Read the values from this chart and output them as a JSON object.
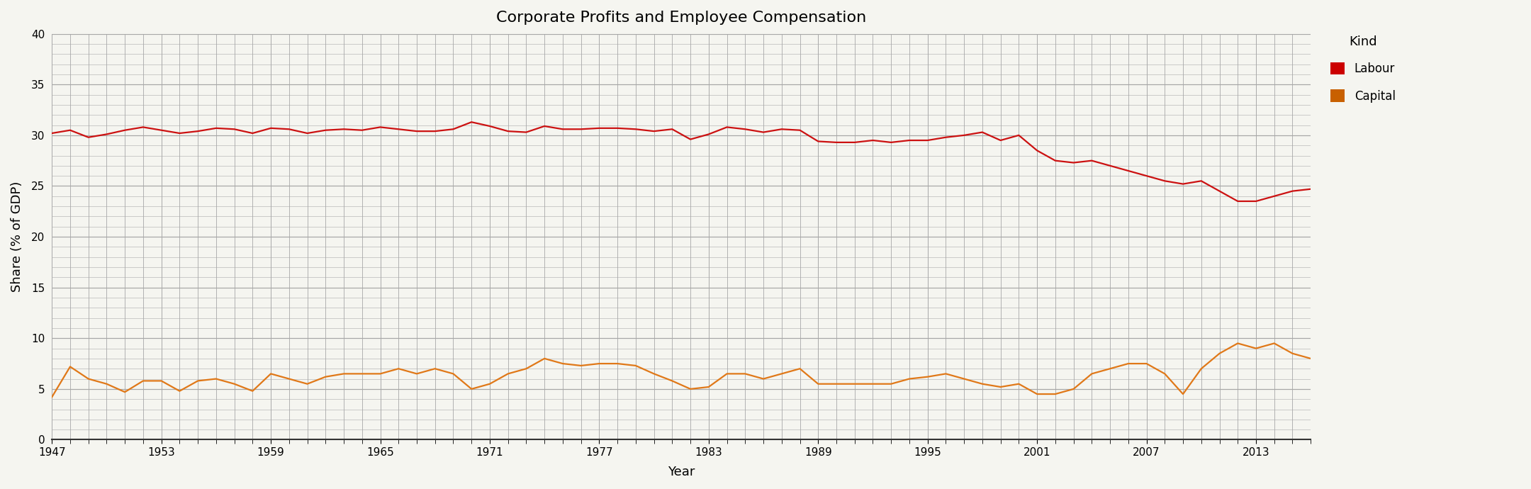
{
  "title": "Corporate Profits and Employee Compensation",
  "xlabel": "Year",
  "ylabel": "Share (% of GDP)",
  "ylim": [
    0,
    40
  ],
  "yticks": [
    0,
    5,
    10,
    15,
    20,
    25,
    30,
    35,
    40
  ],
  "background_color": "#f5f5f0",
  "plot_bg_color": "#f5f5f0",
  "grid_color": "#aaaaaa",
  "heavy_line_color": "#555555",
  "labour_color": "#cc1111",
  "capital_color": "#e07818",
  "legend_title": "Kind",
  "labour_color_legend": "#cc0000",
  "capital_color_legend": "#c86000",
  "years": [
    1947,
    1948,
    1949,
    1950,
    1951,
    1952,
    1953,
    1954,
    1955,
    1956,
    1957,
    1958,
    1959,
    1960,
    1961,
    1962,
    1963,
    1964,
    1965,
    1966,
    1967,
    1968,
    1969,
    1970,
    1971,
    1972,
    1973,
    1974,
    1975,
    1976,
    1977,
    1978,
    1979,
    1980,
    1981,
    1982,
    1983,
    1984,
    1985,
    1986,
    1987,
    1988,
    1989,
    1990,
    1991,
    1992,
    1993,
    1994,
    1995,
    1996,
    1997,
    1998,
    1999,
    2000,
    2001,
    2002,
    2003,
    2004,
    2005,
    2006,
    2007,
    2008,
    2009,
    2010,
    2011,
    2012,
    2013,
    2014,
    2015,
    2016
  ],
  "labour": [
    30.2,
    30.5,
    29.8,
    30.1,
    30.5,
    30.8,
    30.5,
    30.2,
    30.4,
    30.7,
    30.6,
    30.2,
    30.7,
    30.6,
    30.2,
    30.5,
    30.6,
    30.5,
    30.8,
    30.6,
    30.4,
    30.4,
    30.6,
    31.3,
    30.9,
    30.4,
    30.3,
    30.9,
    30.6,
    30.6,
    30.7,
    30.7,
    30.6,
    30.4,
    30.6,
    29.6,
    30.1,
    30.8,
    30.6,
    30.3,
    30.6,
    30.5,
    29.4,
    29.3,
    29.3,
    29.5,
    29.3,
    29.5,
    29.5,
    29.8,
    30.0,
    30.3,
    29.5,
    30.0,
    28.5,
    27.5,
    27.3,
    27.5,
    27.0,
    26.5,
    26.0,
    25.5,
    25.2,
    25.5,
    24.5,
    23.5,
    23.5,
    24.0,
    24.5,
    24.7
  ],
  "capital": [
    4.2,
    7.2,
    6.0,
    5.5,
    4.7,
    5.8,
    5.8,
    4.8,
    5.8,
    6.0,
    5.5,
    4.8,
    6.5,
    6.0,
    5.5,
    6.2,
    6.5,
    6.5,
    6.5,
    7.0,
    6.5,
    7.0,
    6.5,
    5.0,
    5.5,
    6.5,
    7.0,
    8.0,
    7.5,
    7.3,
    7.5,
    7.5,
    7.3,
    6.5,
    5.8,
    5.0,
    5.2,
    6.5,
    6.5,
    6.0,
    6.5,
    7.0,
    5.5,
    5.5,
    5.5,
    5.5,
    5.5,
    6.0,
    6.2,
    6.5,
    6.0,
    5.5,
    5.2,
    5.5,
    4.5,
    4.5,
    5.0,
    6.5,
    7.0,
    7.5,
    7.5,
    6.5,
    4.5,
    7.0,
    8.5,
    9.5,
    9.0,
    9.5,
    8.5,
    8.0
  ],
  "xlim": [
    1947,
    2016
  ],
  "xtick_start": 1947,
  "xtick_step": 6
}
